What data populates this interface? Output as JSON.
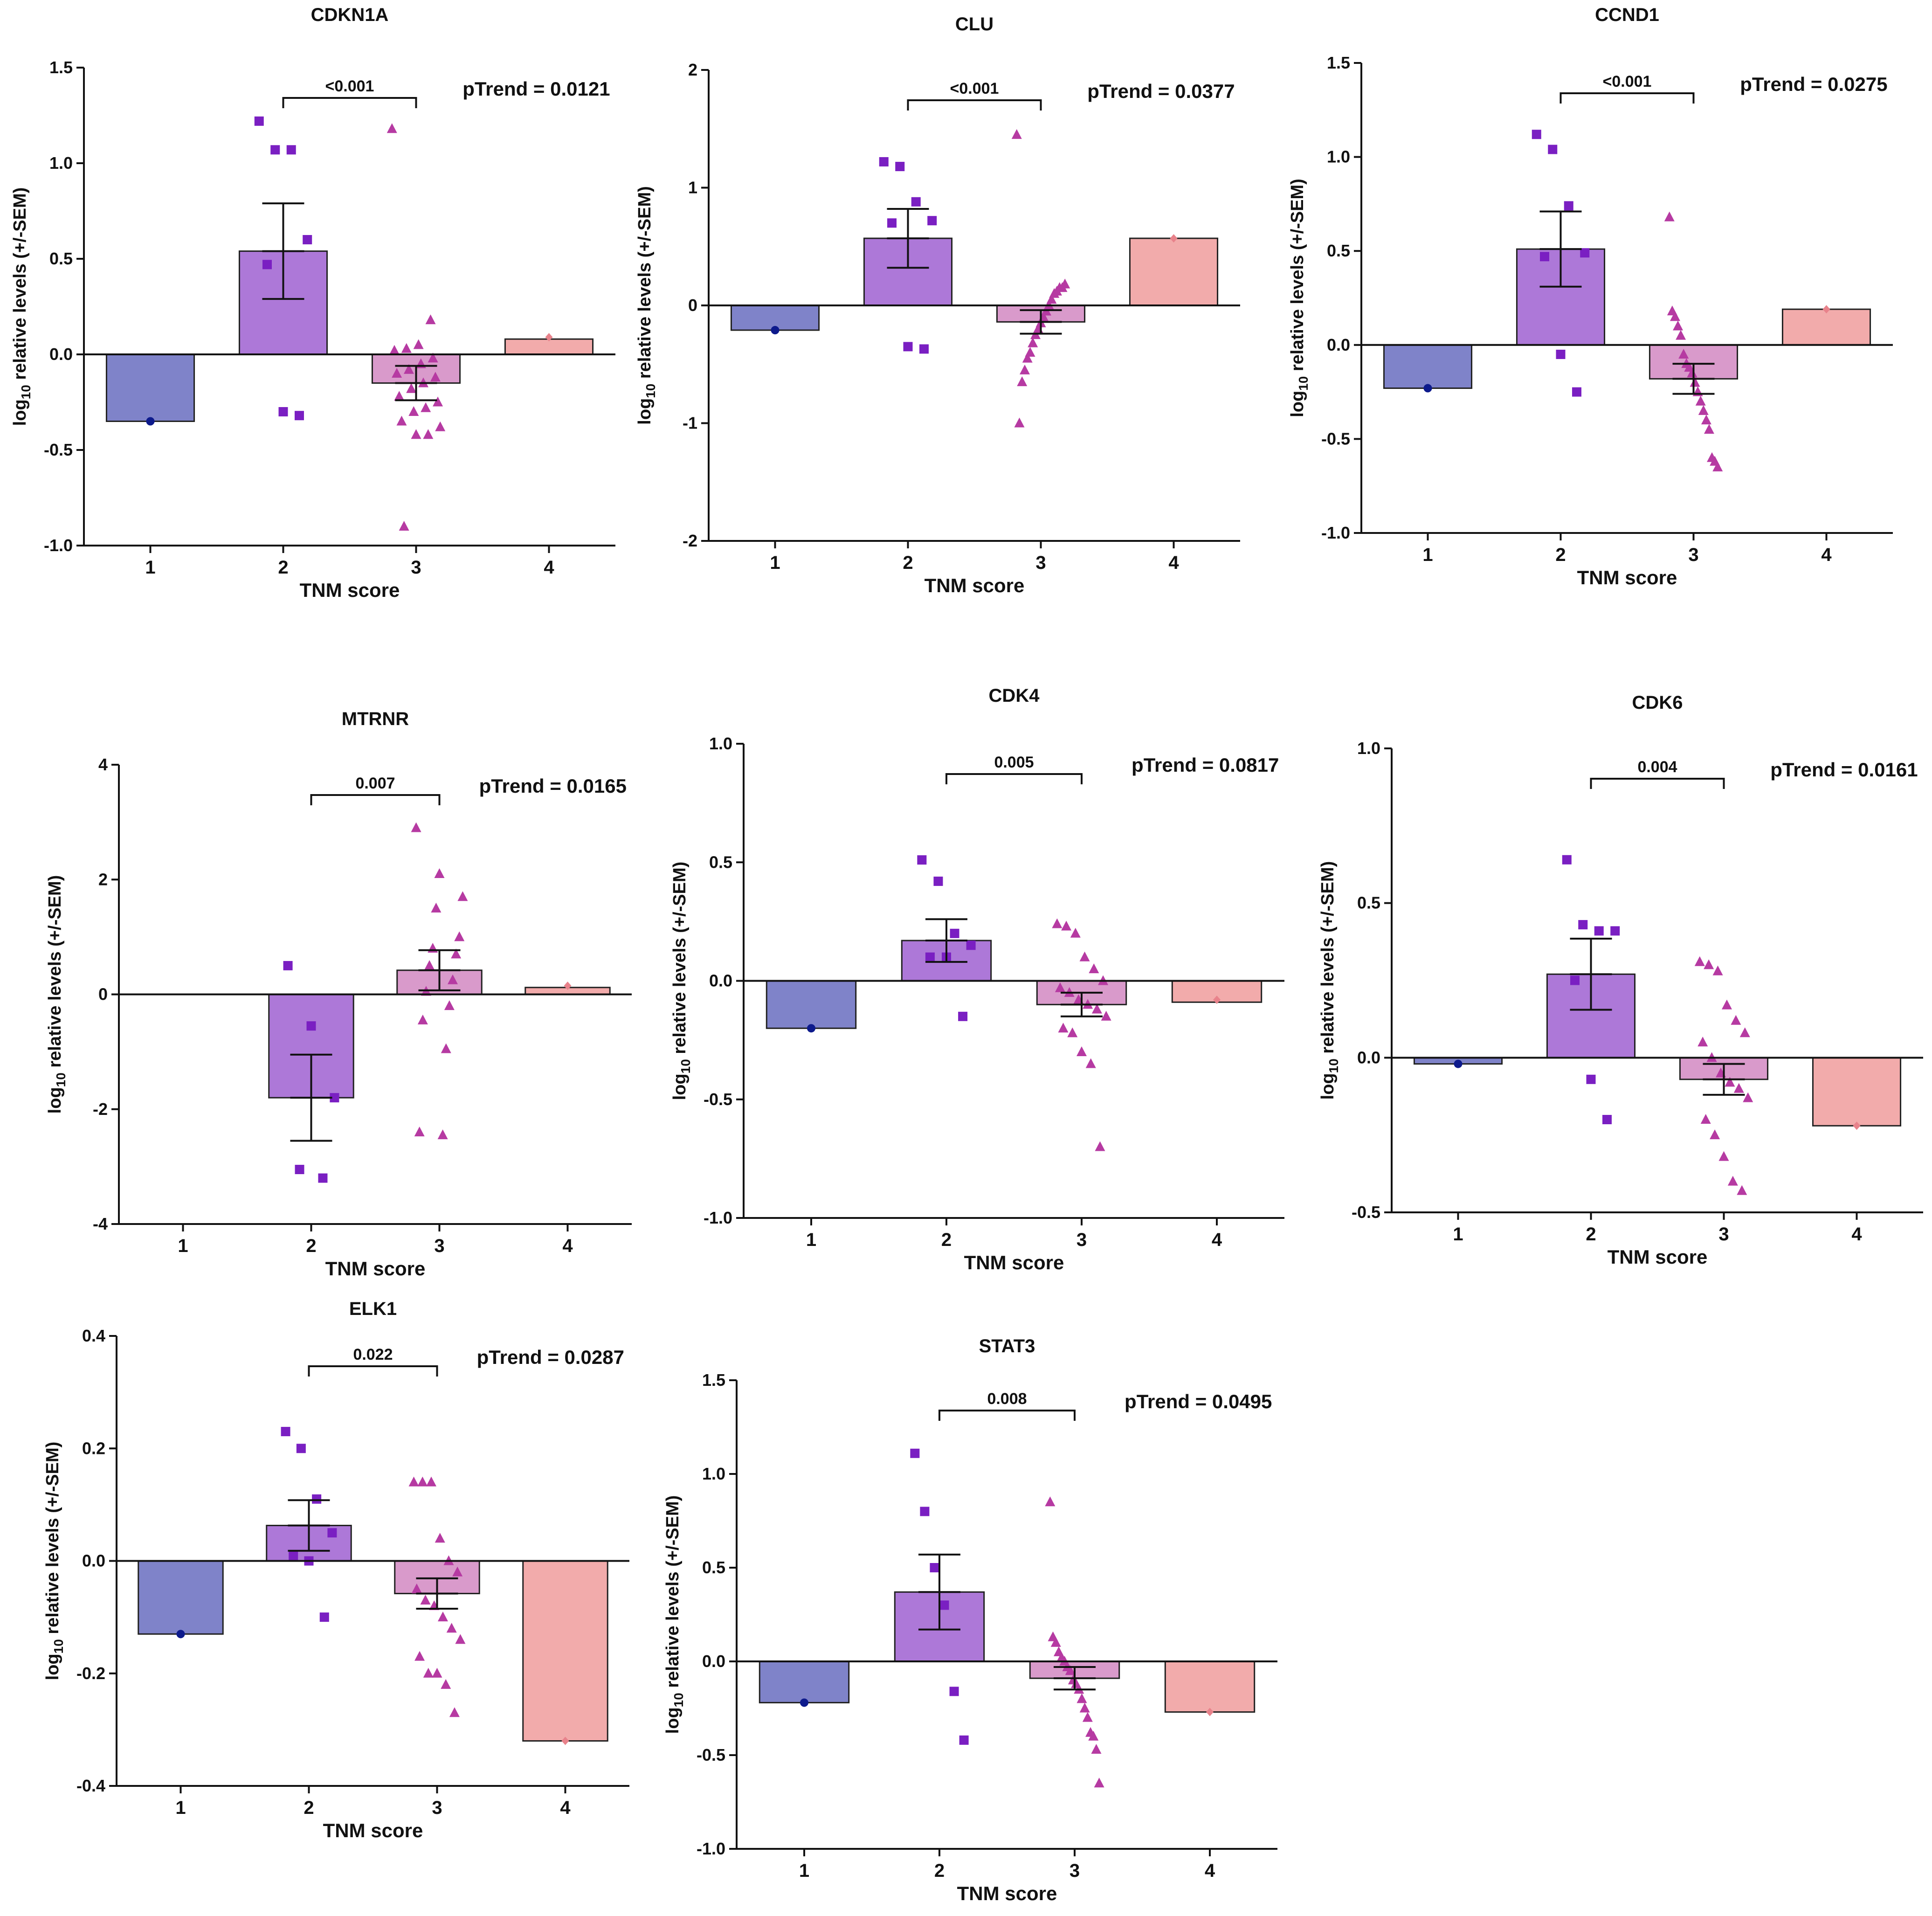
{
  "colors": {
    "tnm1": "#7f83c9",
    "tnm2": "#ad78d8",
    "tnm3": "#d99acb",
    "tnm4": "#f2abab",
    "pt1": "#0d1a8c",
    "pt2": "#7a1fc2",
    "pt3": "#b63aa2",
    "pt4": "#e8828b",
    "axis": "#111111"
  },
  "chart_data": [
    {
      "type": "bar",
      "title": "CDKN1A",
      "xlabel": "TNM score",
      "ylabel_prefix": "log",
      "ylabel_sub": "10",
      "ylabel_suffix": " relative levels (+/-SEM)",
      "categories": [
        "1",
        "2",
        "3",
        "4"
      ],
      "ylim": [
        -1.0,
        1.5
      ],
      "yticks": [
        -1.0,
        -0.5,
        0.0,
        0.5,
        1.0,
        1.5
      ],
      "ytick_labels": [
        "-1.0",
        "-0.5",
        "0.0",
        "0.5",
        "1.0",
        "1.5"
      ],
      "means": [
        -0.35,
        0.54,
        -0.15,
        0.08
      ],
      "sems": [
        0,
        0.25,
        0.09,
        0
      ],
      "points": [
        [
          -0.35
        ],
        [
          1.22,
          1.07,
          1.07,
          0.6,
          0.47,
          -0.3,
          -0.32
        ],
        [
          1.18,
          0.18,
          0.05,
          0.03,
          0.02,
          -0.02,
          -0.05,
          -0.08,
          -0.1,
          -0.12,
          -0.15,
          -0.18,
          -0.22,
          -0.25,
          -0.28,
          -0.3,
          -0.35,
          -0.38,
          -0.42,
          -0.42,
          -0.9
        ],
        [
          0.09
        ]
      ],
      "significance": {
        "from": "2",
        "to": "3",
        "label": "<0.001"
      },
      "ptrend": "pTrend = 0.0121"
    },
    {
      "type": "bar",
      "title": "CLU",
      "xlabel": "TNM score",
      "ylabel_prefix": "log",
      "ylabel_sub": "10",
      "ylabel_suffix": " relative levels (+/-SEM)",
      "categories": [
        "1",
        "2",
        "3",
        "4"
      ],
      "ylim": [
        -2,
        2
      ],
      "yticks": [
        -2,
        -1,
        0,
        1,
        2
      ],
      "ytick_labels": [
        "-2",
        "-1",
        "0",
        "1",
        "2"
      ],
      "means": [
        -0.21,
        0.57,
        -0.14,
        0.57
      ],
      "sems": [
        0,
        0.25,
        0.1,
        0
      ],
      "points": [
        [
          -0.21
        ],
        [
          1.22,
          1.18,
          0.88,
          0.72,
          0.7,
          -0.35,
          -0.37
        ],
        [
          1.45,
          0.18,
          0.15,
          0.15,
          0.12,
          0.1,
          0.05,
          0.0,
          -0.05,
          -0.1,
          -0.15,
          -0.2,
          -0.25,
          -0.32,
          -0.4,
          -0.45,
          -0.55,
          -0.65,
          -1.0
        ],
        [
          0.57
        ]
      ],
      "significance": {
        "from": "2",
        "to": "3",
        "label": "<0.001"
      },
      "ptrend": "pTrend = 0.0377"
    },
    {
      "type": "bar",
      "title": "CCND1",
      "xlabel": "TNM score",
      "ylabel_prefix": "log",
      "ylabel_sub": "10",
      "ylabel_suffix": " relative levels (+/-SEM)",
      "categories": [
        "1",
        "2",
        "3",
        "4"
      ],
      "ylim": [
        -1.0,
        1.5
      ],
      "yticks": [
        -1.0,
        -0.5,
        0.0,
        0.5,
        1.0,
        1.5
      ],
      "ytick_labels": [
        "-1.0",
        "-0.5",
        "0.0",
        "0.5",
        "1.0",
        "1.5"
      ],
      "means": [
        -0.23,
        0.51,
        -0.18,
        0.19
      ],
      "sems": [
        0,
        0.2,
        0.08,
        0
      ],
      "points": [
        [
          -0.23
        ],
        [
          1.12,
          1.04,
          0.74,
          0.49,
          0.47,
          -0.05,
          -0.25
        ],
        [
          0.68,
          0.18,
          0.15,
          0.1,
          0.05,
          -0.05,
          -0.1,
          -0.12,
          -0.15,
          -0.2,
          -0.25,
          -0.3,
          -0.35,
          -0.4,
          -0.45,
          -0.6,
          -0.62,
          -0.65
        ],
        [
          0.19
        ]
      ],
      "significance": {
        "from": "2",
        "to": "3",
        "label": "<0.001"
      },
      "ptrend": "pTrend = 0.0275"
    },
    {
      "type": "bar",
      "title": "MTRNR",
      "xlabel": "TNM score",
      "ylabel_prefix": "log",
      "ylabel_sub": "10",
      "ylabel_suffix": " relative levels (+/-SEM)",
      "categories": [
        "1",
        "2",
        "3",
        "4"
      ],
      "ylim": [
        -4,
        4
      ],
      "yticks": [
        -4,
        -2,
        0,
        2,
        4
      ],
      "ytick_labels": [
        "-4",
        "-2",
        "0",
        "2",
        "4"
      ],
      "means": [
        null,
        -1.8,
        0.42,
        0.12
      ],
      "sems": [
        0,
        0.75,
        0.35,
        0
      ],
      "points": [
        [],
        [
          0.5,
          -0.55,
          -1.8,
          -3.05,
          -3.2
        ],
        [
          2.9,
          2.1,
          1.7,
          1.5,
          1.0,
          0.8,
          0.7,
          0.5,
          0.25,
          0.05,
          -0.2,
          -0.45,
          -0.95,
          -2.4,
          -2.45
        ],
        [
          0.15
        ]
      ],
      "significance": {
        "from": "2",
        "to": "3",
        "label": "0.007"
      },
      "ptrend": "pTrend = 0.0165"
    },
    {
      "type": "bar",
      "title": "CDK4",
      "xlabel": "TNM score",
      "ylabel_prefix": "log",
      "ylabel_sub": "10",
      "ylabel_suffix": " relative levels (+/-SEM)",
      "categories": [
        "1",
        "2",
        "3",
        "4"
      ],
      "ylim": [
        -1.0,
        1.0
      ],
      "yticks": [
        -1.0,
        -0.5,
        0.0,
        0.5,
        1.0
      ],
      "ytick_labels": [
        "-1.0",
        "-0.5",
        "0.0",
        "0.5",
        "1.0"
      ],
      "means": [
        -0.2,
        0.17,
        -0.1,
        -0.09
      ],
      "sems": [
        0,
        0.09,
        0.05,
        0
      ],
      "points": [
        [
          -0.2
        ],
        [
          0.51,
          0.42,
          0.2,
          0.15,
          0.1,
          0.1,
          -0.15
        ],
        [
          0.24,
          0.23,
          0.2,
          0.1,
          0.05,
          0.0,
          -0.03,
          -0.05,
          -0.08,
          -0.1,
          -0.12,
          -0.15,
          -0.2,
          -0.22,
          -0.3,
          -0.35,
          -0.7
        ],
        [
          -0.08
        ]
      ],
      "significance": {
        "from": "2",
        "to": "3",
        "label": "0.005"
      },
      "ptrend": "pTrend = 0.0817"
    },
    {
      "type": "bar",
      "title": "CDK6",
      "xlabel": "TNM score",
      "ylabel_prefix": "log",
      "ylabel_sub": "10",
      "ylabel_suffix": " relative levels (+/-SEM)",
      "categories": [
        "1",
        "2",
        "3",
        "4"
      ],
      "ylim": [
        -0.5,
        1.0
      ],
      "yticks": [
        -0.5,
        0.0,
        0.5,
        1.0
      ],
      "ytick_labels": [
        "-0.5",
        "0.0",
        "0.5",
        "1.0"
      ],
      "means": [
        -0.02,
        0.27,
        -0.07,
        -0.22
      ],
      "sems": [
        0,
        0.115,
        0.05,
        0
      ],
      "points": [
        [
          -0.02
        ],
        [
          0.64,
          0.43,
          0.41,
          0.41,
          0.25,
          -0.07,
          -0.2
        ],
        [
          0.31,
          0.3,
          0.28,
          0.17,
          0.12,
          0.08,
          0.05,
          0.0,
          -0.05,
          -0.08,
          -0.1,
          -0.13,
          -0.2,
          -0.25,
          -0.32,
          -0.4,
          -0.43
        ],
        [
          -0.22
        ]
      ],
      "significance": {
        "from": "2",
        "to": "3",
        "label": "0.004"
      },
      "ptrend": "pTrend = 0.0161"
    },
    {
      "type": "bar",
      "title": "ELK1",
      "xlabel": "TNM score",
      "ylabel_prefix": "log",
      "ylabel_sub": "10",
      "ylabel_suffix": " relative levels (+/-SEM)",
      "categories": [
        "1",
        "2",
        "3",
        "4"
      ],
      "ylim": [
        -0.4,
        0.4
      ],
      "yticks": [
        -0.4,
        -0.2,
        0.0,
        0.2,
        0.4
      ],
      "ytick_labels": [
        "-0.4",
        "-0.2",
        "0.0",
        "0.2",
        "0.4"
      ],
      "means": [
        -0.13,
        0.063,
        -0.058,
        -0.32
      ],
      "sems": [
        0,
        0.045,
        0.027,
        0
      ],
      "points": [
        [
          -0.13
        ],
        [
          0.23,
          0.2,
          0.11,
          0.05,
          0.01,
          0.0,
          -0.1
        ],
        [
          0.14,
          0.14,
          0.14,
          0.04,
          0.0,
          -0.02,
          -0.05,
          -0.07,
          -0.08,
          -0.1,
          -0.12,
          -0.14,
          -0.17,
          -0.2,
          -0.2,
          -0.22,
          -0.27
        ],
        [
          -0.32
        ]
      ],
      "significance": {
        "from": "2",
        "to": "3",
        "label": "0.022"
      },
      "ptrend": "pTrend = 0.0287"
    },
    {
      "type": "bar",
      "title": "STAT3",
      "xlabel": "TNM score",
      "ylabel_prefix": "log",
      "ylabel_sub": "10",
      "ylabel_suffix": " relative levels (+/-SEM)",
      "categories": [
        "1",
        "2",
        "3",
        "4"
      ],
      "ylim": [
        -1.0,
        1.5
      ],
      "yticks": [
        -1.0,
        -0.5,
        0.0,
        0.5,
        1.0,
        1.5
      ],
      "ytick_labels": [
        "-1.0",
        "-0.5",
        "0.0",
        "0.5",
        "1.0",
        "1.5"
      ],
      "means": [
        -0.22,
        0.37,
        -0.09,
        -0.27
      ],
      "sems": [
        0,
        0.2,
        0.06,
        0
      ],
      "points": [
        [
          -0.22
        ],
        [
          1.11,
          0.8,
          0.5,
          0.3,
          -0.16,
          -0.42
        ],
        [
          0.85,
          0.13,
          0.1,
          0.05,
          0.02,
          0.0,
          -0.03,
          -0.05,
          -0.1,
          -0.12,
          -0.15,
          -0.2,
          -0.25,
          -0.3,
          -0.38,
          -0.4,
          -0.47,
          -0.65
        ],
        [
          -0.27
        ]
      ],
      "significance": {
        "from": "2",
        "to": "3",
        "label": "0.008"
      },
      "ptrend": "pTrend = 0.0495"
    }
  ]
}
